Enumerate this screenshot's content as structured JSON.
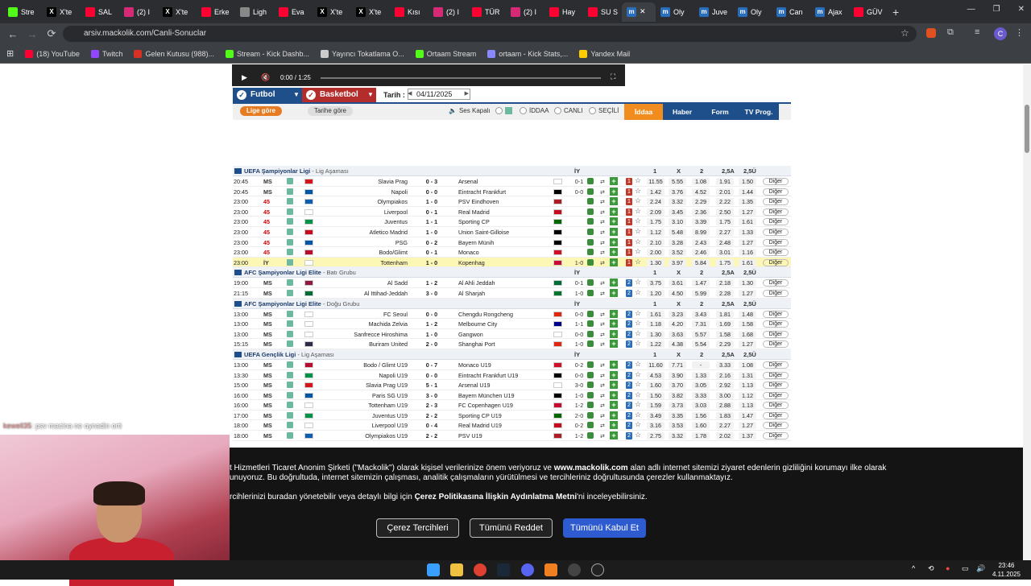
{
  "browser": {
    "tabs": [
      {
        "label": "Stre",
        "color": "#53fc18",
        "icon": "kick-icon"
      },
      {
        "label": "X'te",
        "color": "#000000",
        "icon": "x-icon"
      },
      {
        "label": "SAL",
        "color": "#ff0033",
        "icon": "youtube-icon"
      },
      {
        "label": "(2) I",
        "color": "#d62976",
        "icon": "instagram-icon"
      },
      {
        "label": "X'te",
        "color": "#000000",
        "icon": "x-icon"
      },
      {
        "label": "Erke",
        "color": "#ff0033",
        "icon": "youtube-icon"
      },
      {
        "label": "Ligh",
        "color": "#888888",
        "icon": "pen-icon"
      },
      {
        "label": "Eva",
        "color": "#ff0033",
        "icon": "youtube-icon"
      },
      {
        "label": "X'te",
        "color": "#000000",
        "icon": "x-icon"
      },
      {
        "label": "X'te",
        "color": "#000000",
        "icon": "x-icon"
      },
      {
        "label": "Kısı",
        "color": "#ff0033",
        "icon": "youtube-icon"
      },
      {
        "label": "(2) I",
        "color": "#d62976",
        "icon": "instagram-icon"
      },
      {
        "label": "TÜR",
        "color": "#ff0033",
        "icon": "youtube-icon"
      },
      {
        "label": "(2) I",
        "color": "#d62976",
        "icon": "instagram-icon"
      },
      {
        "label": "Hay",
        "color": "#ff0033",
        "icon": "youtube-icon"
      },
      {
        "label": "SU S",
        "color": "#ff0033",
        "icon": "youtube-icon"
      },
      {
        "label": "",
        "color": "#2a6ebb",
        "icon": "mackolik-icon",
        "active": true
      },
      {
        "label": "Oly",
        "color": "#2a6ebb",
        "icon": "mackolik-icon"
      },
      {
        "label": "Juve",
        "color": "#2a6ebb",
        "icon": "mackolik-icon"
      },
      {
        "label": "Oly",
        "color": "#2a6ebb",
        "icon": "mackolik-icon"
      },
      {
        "label": "Can",
        "color": "#2a6ebb",
        "icon": "mackolik-icon"
      },
      {
        "label": "Ajax",
        "color": "#2a6ebb",
        "icon": "mackolik-icon"
      },
      {
        "label": "GÜV",
        "color": "#ff0033",
        "icon": "youtube-icon"
      }
    ],
    "url": "arsiv.mackolik.com/Canli-Sonuclar",
    "profile": "C",
    "bookmarks": [
      {
        "label": "(18) YouTube",
        "color": "#ff0033"
      },
      {
        "label": "Twitch",
        "color": "#9146ff"
      },
      {
        "label": "Gelen Kutusu (988)...",
        "color": "#d93025"
      },
      {
        "label": "Stream - Kick Dashb...",
        "color": "#53fc18"
      },
      {
        "label": "Yayıncı Tokatlama O...",
        "color": "#cccccc"
      },
      {
        "label": "Ortaam Stream",
        "color": "#53fc18"
      },
      {
        "label": "ortaam - Kick Stats,...",
        "color": "#8888ff"
      },
      {
        "label": "Yandex Mail",
        "color": "#ffcc00"
      }
    ]
  },
  "video": {
    "time": "0:00 / 1:25"
  },
  "menu": {
    "futbol": "Futbol",
    "basketbol": "Basketbol",
    "tarih_label": "Tarih :",
    "date": "04/11/2025",
    "lige_gore": "Lige göre",
    "tarihe_gore": "Tarihe göre",
    "ses": "Ses Kapalı",
    "iddaa_opt": "İDDAA",
    "canli": "CANLI",
    "secili": "SEÇİLİ",
    "iddaa": "İddaa",
    "haber": "Haber",
    "form": "Form",
    "tvprog": "TV Prog."
  },
  "odds_headers": [
    "İY",
    "1",
    "X",
    "2",
    "2,5A",
    "2,5Ü"
  ],
  "groups": [
    {
      "title": "UEFA Şampiyonlar Ligi",
      "sub": "Lig Aşaması",
      "rows": [
        {
          "time": "20:45",
          "st": "MS",
          "home": "Slavia Prag",
          "score": "0 - 3",
          "away": "Arsenal",
          "iy": "0-1",
          "hf": "#d7141a",
          "af": "#ffffff",
          "bad": "1",
          "o": [
            "11.55",
            "5.55",
            "1.08",
            "1.91",
            "1.50"
          ]
        },
        {
          "time": "20:45",
          "st": "MS",
          "home": "Napoli",
          "score": "0 - 0",
          "away": "Eintracht Frankfurt",
          "iy": "0-0",
          "hf": "#0055a4",
          "af": "#000000",
          "bad": "1",
          "o": [
            "1.42",
            "3.76",
            "4.52",
            "2.01",
            "1.44"
          ]
        },
        {
          "time": "23:00",
          "st": "45",
          "live": true,
          "home": "Olympiakos",
          "score": "1 - 0",
          "away": "PSV Eindhoven",
          "iy": "",
          "hf": "#0d5eaf",
          "af": "#ae1c28",
          "bad": "1",
          "o": [
            "2.24",
            "3.32",
            "2.29",
            "2.22",
            "1.35"
          ]
        },
        {
          "time": "23:00",
          "st": "45",
          "live": true,
          "home": "Liverpool",
          "score": "0 - 1",
          "away": "Real Madrid",
          "iy": "",
          "hf": "#ffffff",
          "af": "#c60b1e",
          "bad": "1",
          "o": [
            "2.09",
            "3.45",
            "2.36",
            "2.50",
            "1.27"
          ]
        },
        {
          "time": "23:00",
          "st": "45",
          "live": true,
          "home": "Juventus",
          "score": "1 - 1",
          "away": "Sporting CP",
          "iy": "",
          "hf": "#009246",
          "af": "#006600",
          "bad": "1",
          "o": [
            "1.75",
            "3.10",
            "3.39",
            "1.75",
            "1.61"
          ]
        },
        {
          "time": "23:00",
          "st": "45",
          "live": true,
          "home": "Atletico Madrid",
          "score": "1 - 0",
          "away": "Union Saint-Gilloise",
          "iy": "",
          "hf": "#c60b1e",
          "af": "#000000",
          "bad": "1",
          "o": [
            "1.12",
            "5.48",
            "8.99",
            "2.27",
            "1.33"
          ]
        },
        {
          "time": "23:00",
          "st": "45",
          "live": true,
          "home": "PSG",
          "score": "0 - 2",
          "away": "Bayern Münih",
          "iy": "",
          "hf": "#0055a4",
          "af": "#000000",
          "bad": "1",
          "o": [
            "2.10",
            "3.28",
            "2.43",
            "2.48",
            "1.27"
          ]
        },
        {
          "time": "23:00",
          "st": "45",
          "live": true,
          "home": "Bodo/Glimt",
          "score": "0 - 1",
          "away": "Monaco",
          "iy": "",
          "hf": "#ba0c2f",
          "af": "#ce1126",
          "bad": "1",
          "o": [
            "2.00",
            "3.52",
            "2.46",
            "3.01",
            "1.16"
          ]
        },
        {
          "time": "23:00",
          "st": "İY",
          "hl": true,
          "home": "Tottenham",
          "score": "1 - 0",
          "away": "Kopenhag",
          "iy": "1-0",
          "hf": "#ffffff",
          "af": "#c60c30",
          "bad": "1",
          "o": [
            "1.30",
            "3.97",
            "5.84",
            "1.75",
            "1.61"
          ]
        }
      ]
    },
    {
      "title": "AFC Şampiyonlar Ligi Elite",
      "sub": "Batı Grubu",
      "rows": [
        {
          "time": "19:00",
          "st": "MS",
          "home": "Al Sadd",
          "score": "1 - 2",
          "away": "Al Ahli Jeddah",
          "iy": "0-1",
          "hf": "#8d1b3d",
          "af": "#006c35",
          "bad": "2",
          "o": [
            "3.75",
            "3.61",
            "1.47",
            "2.18",
            "1.30"
          ]
        },
        {
          "time": "21:15",
          "st": "MS",
          "home": "Al Ittihad-Jeddah",
          "score": "3 - 0",
          "away": "Al Sharjah",
          "iy": "1-0",
          "hf": "#006c35",
          "af": "#00732f",
          "bad": "2",
          "o": [
            "1.20",
            "4.50",
            "5.99",
            "2.28",
            "1.27"
          ]
        }
      ]
    },
    {
      "title": "AFC Şampiyonlar Ligi Elite",
      "sub": "Doğu Grubu",
      "rows": [
        {
          "time": "13:00",
          "st": "MS",
          "home": "FC Seoul",
          "score": "0 - 0",
          "away": "Chengdu Rongcheng",
          "iy": "0-0",
          "hf": "#ffffff",
          "af": "#de2910",
          "bad": "2",
          "o": [
            "1.61",
            "3.23",
            "3.43",
            "1.81",
            "1.48"
          ]
        },
        {
          "time": "13:00",
          "st": "MS",
          "home": "Machida Zelvia",
          "score": "1 - 2",
          "away": "Melbourne City",
          "iy": "1-1",
          "hf": "#ffffff",
          "af": "#00008b",
          "bad": "2",
          "o": [
            "1.18",
            "4.20",
            "7.31",
            "1.69",
            "1.58"
          ]
        },
        {
          "time": "13:00",
          "st": "MS",
          "home": "Sanfrecce Hiroshima",
          "score": "1 - 0",
          "away": "Gangwon",
          "iy": "0-0",
          "hf": "#ffffff",
          "af": "#ffffff",
          "bad": "2",
          "o": [
            "1.30",
            "3.63",
            "5.57",
            "1.58",
            "1.68"
          ]
        },
        {
          "time": "15:15",
          "st": "MS",
          "home": "Buriram United",
          "score": "2 - 0",
          "away": "Shanghai Port",
          "iy": "1-0",
          "hf": "#2d2a4a",
          "af": "#de2910",
          "bad": "2",
          "o": [
            "1.22",
            "4.38",
            "5.54",
            "2.29",
            "1.27"
          ]
        }
      ]
    },
    {
      "title": "UEFA Gençlik Ligi",
      "sub": "Lig Aşaması",
      "rows": [
        {
          "time": "13:00",
          "st": "MS",
          "home": "Bodo / Glimt U19",
          "score": "0 - 7",
          "away": "Monaco U19",
          "iy": "0-2",
          "hf": "#ba0c2f",
          "af": "#ce1126",
          "bad": "2",
          "o": [
            "11.60",
            "7.71",
            "-",
            "3.33",
            "1.08"
          ]
        },
        {
          "time": "13:30",
          "st": "MS",
          "home": "Napoli U19",
          "score": "0 - 0",
          "away": "Eintracht Frankfurt U19",
          "iy": "0-0",
          "hf": "#009246",
          "af": "#000000",
          "bad": "2",
          "o": [
            "4.53",
            "3.90",
            "1.33",
            "2.16",
            "1.31"
          ]
        },
        {
          "time": "15:00",
          "st": "MS",
          "home": "Slavia Prag U19",
          "score": "5 - 1",
          "away": "Arsenal U19",
          "iy": "3-0",
          "hf": "#d7141a",
          "af": "#ffffff",
          "bad": "2",
          "o": [
            "1.60",
            "3.70",
            "3.05",
            "2.92",
            "1.13"
          ]
        },
        {
          "time": "16:00",
          "st": "MS",
          "home": "Paris SG U19",
          "score": "3 - 0",
          "away": "Bayern München U19",
          "iy": "1-0",
          "hf": "#0055a4",
          "af": "#000000",
          "bad": "2",
          "o": [
            "1.50",
            "3.82",
            "3.33",
            "3.00",
            "1.12"
          ]
        },
        {
          "time": "16:00",
          "st": "MS",
          "home": "Tottenham U19",
          "score": "2 - 3",
          "away": "FC Copenhagen U19",
          "iy": "1-2",
          "hf": "#ffffff",
          "af": "#c60c30",
          "bad": "2",
          "o": [
            "1.59",
            "3.73",
            "3.03",
            "2.88",
            "1.13"
          ]
        },
        {
          "time": "17:00",
          "st": "MS",
          "home": "Juventus U19",
          "score": "2 - 2",
          "away": "Sporting CP U19",
          "iy": "2-0",
          "hf": "#009246",
          "af": "#006600",
          "bad": "2",
          "o": [
            "3.49",
            "3.35",
            "1.56",
            "1.83",
            "1.47"
          ]
        },
        {
          "time": "18:00",
          "st": "MS",
          "home": "Liverpool U19",
          "score": "0 - 4",
          "away": "Real Madrid U19",
          "iy": "0-2",
          "hf": "#ffffff",
          "af": "#c60b1e",
          "bad": "2",
          "o": [
            "3.16",
            "3.53",
            "1.60",
            "2.27",
            "1.27"
          ]
        },
        {
          "time": "18:00",
          "st": "MS",
          "home": "Olympiakos U19",
          "score": "2 - 2",
          "away": "PSV U19",
          "iy": "1-2",
          "hf": "#0d5eaf",
          "af": "#ae1c28",
          "bad": "2",
          "o": [
            "2.75",
            "3.32",
            "1.78",
            "2.02",
            "1.37"
          ]
        }
      ]
    }
  ],
  "diger": "Diğer",
  "cookie": {
    "line1a": "t Hizmetleri Ticaret Anonim Şirketi (\"Mackolik\") olarak kişisel verilerinize önem veriyoruz ve ",
    "line1b": "www.mackolik.com",
    "line1c": " alan adlı internet sitemizi ziyaret edenlerin gizliliğini korumayı ilke olarak",
    "line2": "unuyoruz. Bu doğrultuda, internet sitemizin çalışması, analitik çalışmaların yürütülmesi ve tercihleriniz doğrultusunda çerezler kullanmaktayız.",
    "line3a": "rcihlerinizi buradan yönetebilir veya detaylı bilgi için ",
    "line3b": "Çerez Politikasına İlişkin Aydınlatma Metni",
    "line3c": "'ni inceleyebilirsiniz.",
    "btn_tercih": "Çerez Tercihleri",
    "btn_reddet": "Tümünü Reddet",
    "btn_kabul": "Tümünü Kabul Et"
  },
  "chat": {
    "user": "kewell35",
    "message": ": psv macina ne oynadin orti"
  },
  "clock": {
    "time": "23:46",
    "date": "4.11.2025"
  }
}
